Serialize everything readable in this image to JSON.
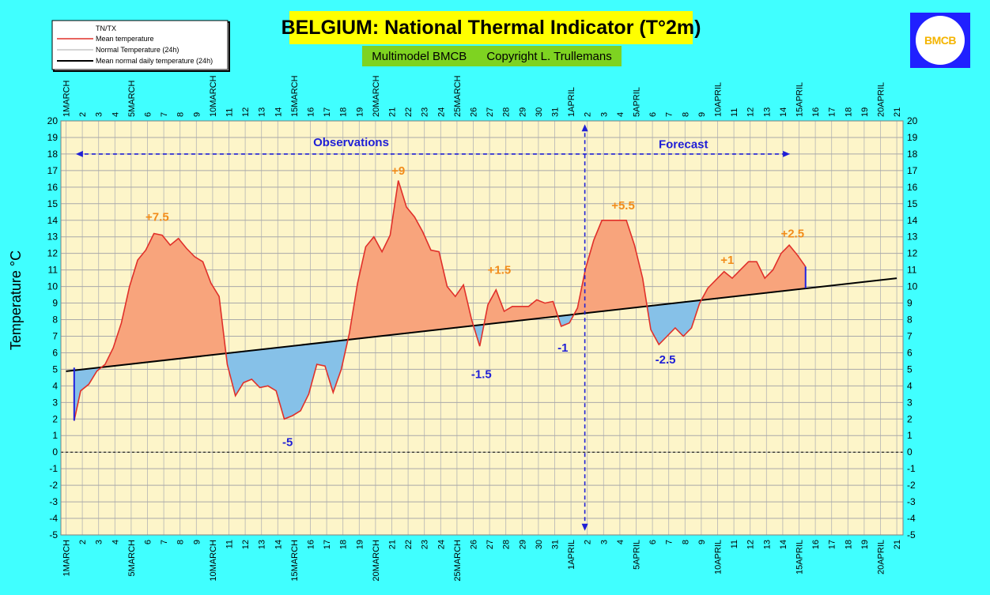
{
  "chart_data": {
    "type": "area",
    "title": "BELGIUM: National Thermal Indicator (T°2m)",
    "subtitle": "Multimodel BMCB      Copyright L. Trullemans",
    "ylabel": "Temperature °C",
    "ylim": [
      -5,
      20
    ],
    "yticks": [
      20,
      19,
      18,
      17,
      16,
      15,
      14,
      13,
      12,
      11,
      10,
      9,
      8,
      7,
      6,
      5,
      4,
      3,
      2,
      1,
      0,
      -1,
      -2,
      -3,
      -4,
      -5
    ],
    "xlim": [
      1,
      52
    ],
    "xticks": [
      "1MARCH",
      "2",
      "3",
      "4",
      "5MARCH",
      "6",
      "7",
      "8",
      "9",
      "10MARCH",
      "11",
      "12",
      "13",
      "14",
      "15MARCH",
      "16",
      "17",
      "18",
      "19",
      "20MARCH",
      "21",
      "22",
      "23",
      "24",
      "25MARCH",
      "26",
      "27",
      "28",
      "29",
      "30",
      "31",
      "1APRIL",
      "2",
      "3",
      "4",
      "5APRIL",
      "6",
      "7",
      "8",
      "9",
      "10APRIL",
      "11",
      "12",
      "13",
      "14",
      "15APRIL",
      "16",
      "17",
      "18",
      "19",
      "20APRIL",
      "21"
    ],
    "legend": {
      "title": "TN/TX",
      "entries": [
        "Mean temperature",
        "Normal Temperature (24h)",
        "Mean normal daily temperature (24h)"
      ]
    },
    "series": [
      {
        "name": "Mean temperature",
        "x": [
          1.5,
          1.9,
          2.4,
          2.9,
          3.4,
          3.9,
          4.4,
          4.9,
          5.4,
          5.9,
          6.4,
          6.9,
          7.4,
          7.9,
          8.4,
          8.9,
          9.4,
          9.9,
          10.4,
          10.9,
          11.4,
          11.9,
          12.4,
          12.9,
          13.4,
          13.9,
          14.4,
          14.9,
          15.4,
          15.9,
          16.4,
          16.9,
          17.4,
          17.9,
          18.4,
          18.9,
          19.4,
          19.9,
          20.4,
          20.9,
          21.4,
          21.9,
          22.4,
          22.9,
          23.4,
          23.9,
          24.4,
          24.9,
          25.4,
          25.9,
          26.4,
          26.9,
          27.4,
          27.9,
          28.4,
          28.9,
          29.4,
          29.9,
          30.4,
          30.9,
          31.4,
          31.9,
          32.4,
          32.9,
          33.4,
          33.9,
          34.4,
          34.9,
          35.4,
          35.9,
          36.4,
          36.9,
          37.4,
          37.9,
          38.4,
          38.9,
          39.4,
          39.9,
          40.4,
          40.9,
          41.4,
          41.9,
          42.4,
          42.9,
          43.4,
          43.9,
          44.4,
          44.9,
          45.4,
          45.9,
          46.4
        ],
        "values": [
          1.9,
          3.7,
          4.1,
          4.9,
          5.3,
          6.3,
          7.8,
          10,
          11.6,
          12.2,
          13.2,
          13.1,
          12.5,
          12.9,
          12.3,
          11.8,
          11.5,
          10.2,
          9.4,
          5.3,
          3.4,
          4.2,
          4.4,
          3.9,
          4,
          3.7,
          2,
          2.2,
          2.5,
          3.5,
          5.3,
          5.2,
          3.6,
          5,
          7.2,
          10.2,
          12.4,
          13,
          12.1,
          13.1,
          16.4,
          14.8,
          14.2,
          13.3,
          12.2,
          12.1,
          10,
          9.4,
          10.1,
          8,
          6.4,
          8.9,
          9.8,
          8.5,
          8.8,
          8.8,
          8.8,
          9.2,
          9,
          9.1,
          7.6,
          7.8,
          8.7,
          11.1,
          12.8,
          14,
          14,
          14,
          14,
          12.5,
          10.5,
          7.4,
          6.5,
          7,
          7.5,
          7,
          7.5,
          9,
          9.9,
          10.4,
          10.9,
          10.5,
          11,
          11.5,
          11.5,
          10.5,
          11,
          12,
          12.5,
          11.9,
          11.2
        ]
      },
      {
        "name": "Mean normal daily temperature (24h)",
        "x": [
          1,
          52
        ],
        "values": [
          4.88,
          10.5
        ]
      }
    ],
    "annotations": [
      {
        "text": "Observations",
        "x": 18.5,
        "y": 18.7,
        "color": "#1f1fd6"
      },
      {
        "text": "Forecast",
        "x": 38.9,
        "y": 18.6,
        "color": "#1f1fd6"
      },
      {
        "text": "+7.5",
        "x": 6.6,
        "y": 14.2,
        "color": "#f28c1a"
      },
      {
        "text": "+9",
        "x": 21.4,
        "y": 17,
        "color": "#f28c1a"
      },
      {
        "text": "+1.5",
        "x": 27.6,
        "y": 11,
        "color": "#f28c1a"
      },
      {
        "text": "+5.5",
        "x": 35.2,
        "y": 14.9,
        "color": "#f28c1a"
      },
      {
        "text": "+1",
        "x": 41.6,
        "y": 11.6,
        "color": "#f28c1a"
      },
      {
        "text": "+2.5",
        "x": 45.6,
        "y": 13.2,
        "color": "#f28c1a"
      },
      {
        "text": "-5",
        "x": 14.6,
        "y": 0.6,
        "color": "#1f1fd6"
      },
      {
        "text": "-1.5",
        "x": 26.5,
        "y": 4.7,
        "color": "#1f1fd6"
      },
      {
        "text": "-1",
        "x": 31.5,
        "y": 6.3,
        "color": "#1f1fd6"
      },
      {
        "text": "-2.5",
        "x": 37.8,
        "y": 5.6,
        "color": "#1f1fd6"
      }
    ],
    "markers": {
      "observations_arrow": {
        "x_from": 1.7,
        "x_to": 45.4,
        "y": 18
      },
      "forecast_divider_x": 32.85,
      "forecast_divider_y_range": [
        -4.7,
        19.7
      ],
      "zero_line_y": 0,
      "blue_end_bars": [
        {
          "x": 1.5,
          "y_from": 1.9,
          "y_to": 5.1
        },
        {
          "x": 46.4,
          "y_from": 9.9,
          "y_to": 11.2
        }
      ]
    },
    "colors": {
      "above": "#f8a47c",
      "below": "#86c1e8",
      "mean_line": "#e0302a",
      "normal_line": "#000000",
      "plot_bg": "#fdf5c9",
      "grid": "#b4b4b4",
      "accent": "#1f1fd6"
    }
  },
  "logo": {
    "text": "BMCB"
  }
}
